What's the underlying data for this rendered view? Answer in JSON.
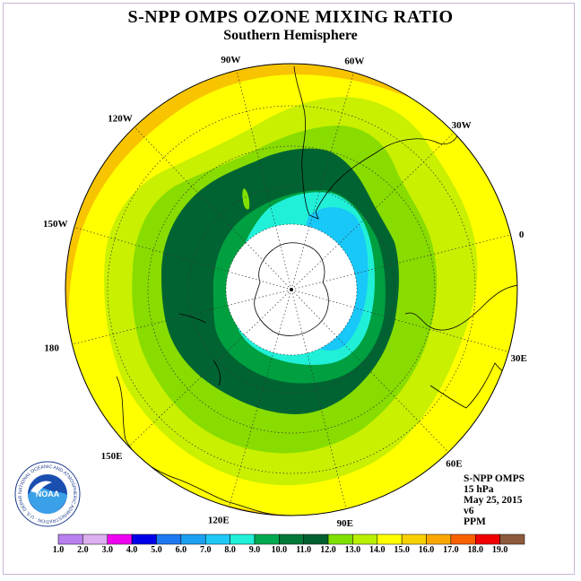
{
  "title": "S-NPP OMPS OZONE MIXING RATIO",
  "subtitle": "Southern Hemisphere",
  "info": {
    "instrument": "S-NPP OMPS",
    "level": "15 hPa",
    "date": "May 25, 2015",
    "version": "v6",
    "units": "PPM"
  },
  "longitude_labels": [
    "90W",
    "60W",
    "30W",
    "0",
    "30E",
    "60E",
    "90E",
    "120E",
    "150E",
    "180",
    "150W",
    "120W"
  ],
  "logo": {
    "text": "NOAA",
    "ring_text": "NATIONAL OCEANIC AND ATMOSPHERIC ADMINISTRATION · U.S. DEPARTMENT OF COMMERCE"
  },
  "colorbar": {
    "labels": [
      "1.0",
      "2.0",
      "3.0",
      "4.0",
      "5.0",
      "6.0",
      "7.0",
      "8.0",
      "9.0",
      "10.0",
      "11.0",
      "12.0",
      "13.0",
      "14.0",
      "15.0",
      "16.0",
      "17.0",
      "18.0",
      "19.0"
    ],
    "colors": [
      "#b980f0",
      "#dcb0f0",
      "#f000f0",
      "#0000e8",
      "#1e78f0",
      "#1ea0f0",
      "#20c8f8",
      "#20f0d8",
      "#00a850",
      "#007838",
      "#006030",
      "#80e000",
      "#b8f000",
      "#ffff00",
      "#f8d000",
      "#f8a800",
      "#f86000",
      "#f00000",
      "#8c5a3c"
    ]
  }
}
